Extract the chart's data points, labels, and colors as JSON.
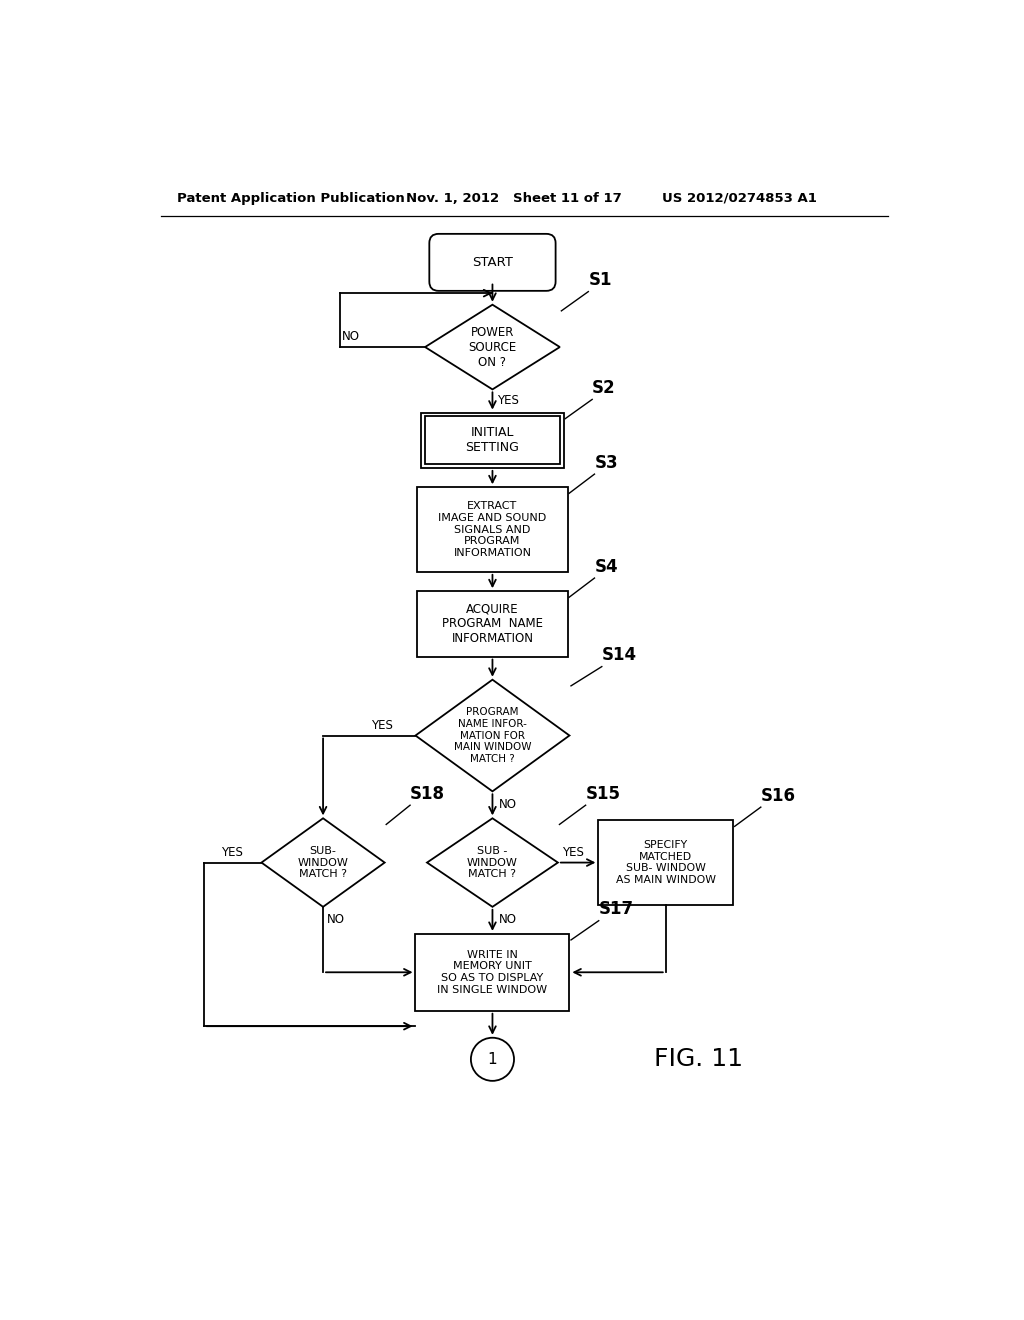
{
  "bg_color": "#ffffff",
  "header_left": "Patent Application Publication",
  "header_mid": "Nov. 1, 2012   Sheet 11 of 17",
  "header_right": "US 2012/0274853 A1",
  "fig_label": "FIG. 11"
}
